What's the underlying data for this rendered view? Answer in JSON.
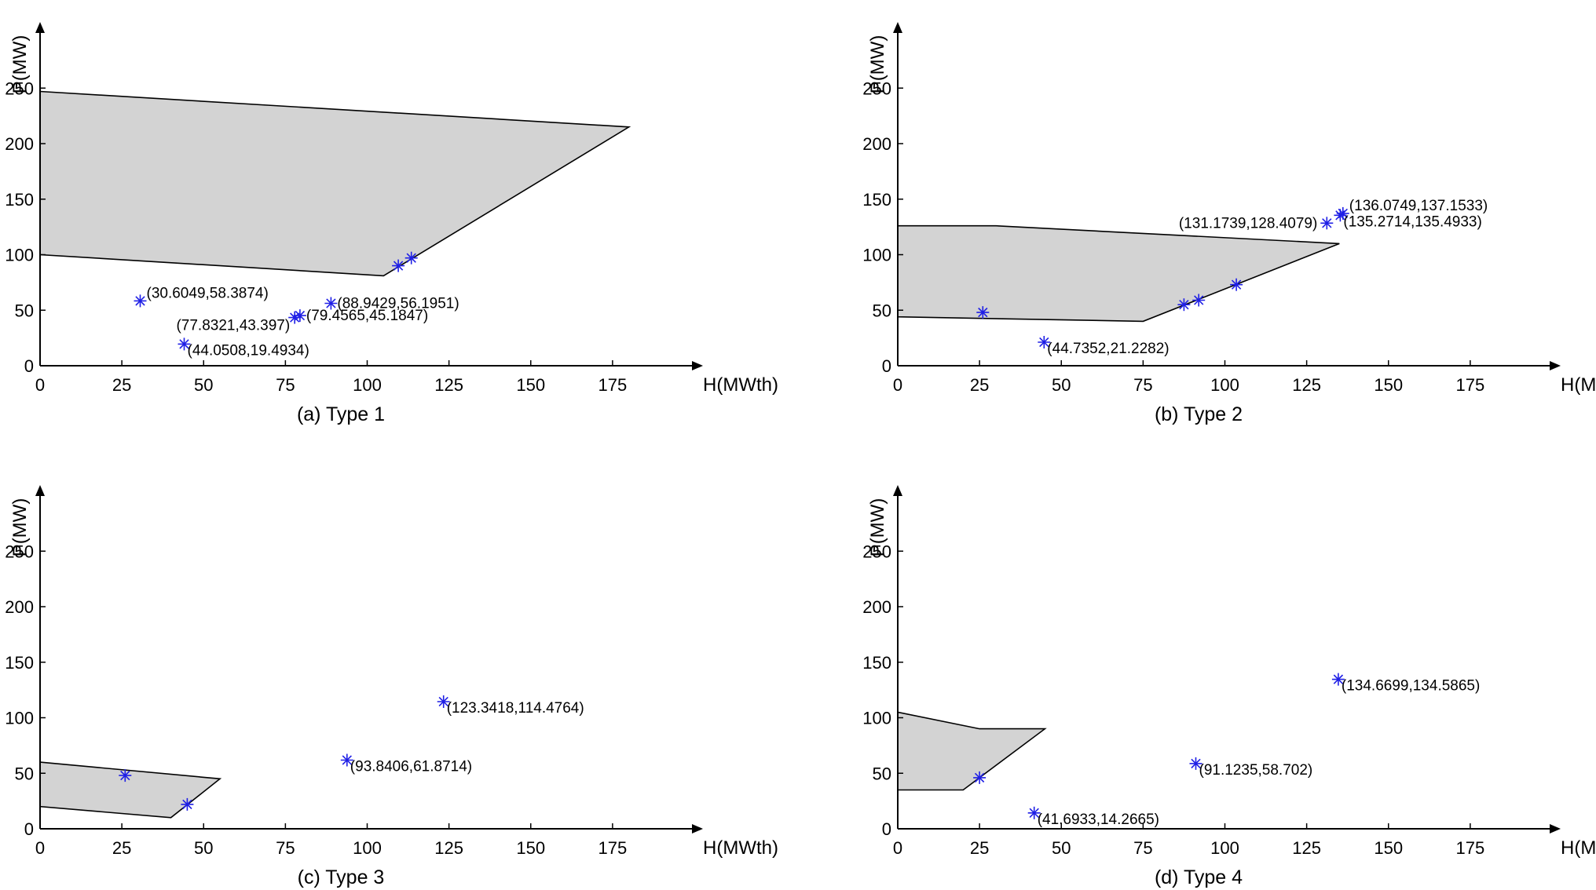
{
  "colors": {
    "region_fill": "#d3d3d3",
    "region_stroke": "#000000",
    "marker": "#1f1fe6",
    "axis": "#000000"
  },
  "chart_data": [
    {
      "type": "scatter",
      "caption": "(a) Type 1",
      "xlabel": "H(MWth)",
      "ylabel": "P(MW)",
      "xlim": [
        0,
        200
      ],
      "ylim": [
        0,
        300
      ],
      "xticks": [
        0,
        25,
        50,
        75,
        100,
        125,
        150,
        175
      ],
      "yticks": [
        0,
        50,
        100,
        150,
        200,
        250
      ],
      "region": [
        [
          0,
          247
        ],
        [
          180,
          215
        ],
        [
          105,
          81
        ],
        [
          0,
          100
        ]
      ],
      "points": [
        {
          "x": 30.6049,
          "y": 58.3874,
          "label": "(30.6049,58.3874)",
          "anchor": "ne"
        },
        {
          "x": 44.0508,
          "y": 19.4934,
          "label": "(44.0508,19.4934)",
          "anchor": "se"
        },
        {
          "x": 77.8321,
          "y": 43.397,
          "label": "(77.8321,43.397)",
          "anchor": "sw"
        },
        {
          "x": 79.4565,
          "y": 45.1847,
          "label": "(79.4565,45.1847)",
          "anchor": "e"
        },
        {
          "x": 88.9429,
          "y": 56.1951,
          "label": "(88.9429,56.1951)",
          "anchor": "e"
        },
        {
          "x": 109.5,
          "y": 90,
          "label": "",
          "anchor": ""
        },
        {
          "x": 113.5,
          "y": 97,
          "label": "",
          "anchor": ""
        }
      ]
    },
    {
      "type": "scatter",
      "caption": "(b) Type 2",
      "xlabel": "H(MWth)",
      "ylabel": "P(MW)",
      "xlim": [
        0,
        200
      ],
      "ylim": [
        0,
        300
      ],
      "xticks": [
        0,
        25,
        50,
        75,
        100,
        125,
        150,
        175
      ],
      "yticks": [
        0,
        50,
        100,
        150,
        200,
        250
      ],
      "region": [
        [
          0,
          126
        ],
        [
          30,
          126
        ],
        [
          135,
          110
        ],
        [
          75,
          40
        ],
        [
          0,
          44
        ]
      ],
      "points": [
        {
          "x": 131.1739,
          "y": 128.4079,
          "label": "(131.1739,128.4079)",
          "anchor": "w"
        },
        {
          "x": 136.0749,
          "y": 137.1533,
          "label": "(136.0749,137.1533)",
          "anchor": "ne"
        },
        {
          "x": 135.2714,
          "y": 135.4933,
          "label": "(135.2714,135.4933)",
          "anchor": "se"
        },
        {
          "x": 44.7352,
          "y": 21.2282,
          "label": "(44.7352,21.2282)",
          "anchor": "se"
        },
        {
          "x": 26,
          "y": 48,
          "label": "",
          "anchor": ""
        },
        {
          "x": 87.5,
          "y": 55,
          "label": "",
          "anchor": ""
        },
        {
          "x": 92,
          "y": 59,
          "label": "",
          "anchor": ""
        },
        {
          "x": 103.5,
          "y": 73,
          "label": "",
          "anchor": ""
        }
      ]
    },
    {
      "type": "scatter",
      "caption": "(c) Type 3",
      "xlabel": "H(MWth)",
      "ylabel": "P(MW)",
      "xlim": [
        0,
        200
      ],
      "ylim": [
        0,
        300
      ],
      "xticks": [
        0,
        25,
        50,
        75,
        100,
        125,
        150,
        175
      ],
      "yticks": [
        0,
        50,
        100,
        150,
        200,
        250
      ],
      "region": [
        [
          0,
          60
        ],
        [
          55,
          45
        ],
        [
          40,
          10
        ],
        [
          0,
          20
        ]
      ],
      "points": [
        {
          "x": 123.3418,
          "y": 114.4764,
          "label": "(123.3418,114.4764)",
          "anchor": "se"
        },
        {
          "x": 93.8406,
          "y": 61.8714,
          "label": "(93.8406,61.8714)",
          "anchor": "se"
        },
        {
          "x": 26,
          "y": 48,
          "label": "",
          "anchor": ""
        },
        {
          "x": 45,
          "y": 22,
          "label": "",
          "anchor": ""
        }
      ]
    },
    {
      "type": "scatter",
      "caption": "(d) Type 4",
      "xlabel": "H(MWth)",
      "ylabel": "P(MW)",
      "xlim": [
        0,
        200
      ],
      "ylim": [
        0,
        300
      ],
      "xticks": [
        0,
        25,
        50,
        75,
        100,
        125,
        150,
        175
      ],
      "yticks": [
        0,
        50,
        100,
        150,
        200,
        250
      ],
      "region": [
        [
          0,
          105
        ],
        [
          25,
          90
        ],
        [
          45,
          90
        ],
        [
          20,
          35
        ],
        [
          0,
          35
        ]
      ],
      "points": [
        {
          "x": 134.6699,
          "y": 134.5865,
          "label": "(134.6699,134.5865)",
          "anchor": "se"
        },
        {
          "x": 91.1235,
          "y": 58.702,
          "label": "(91.1235,58.702)",
          "anchor": "se"
        },
        {
          "x": 41.6933,
          "y": 14.2665,
          "label": "(41.6933,14.2665)",
          "anchor": "se"
        },
        {
          "x": 25,
          "y": 46,
          "label": "",
          "anchor": ""
        }
      ]
    }
  ]
}
